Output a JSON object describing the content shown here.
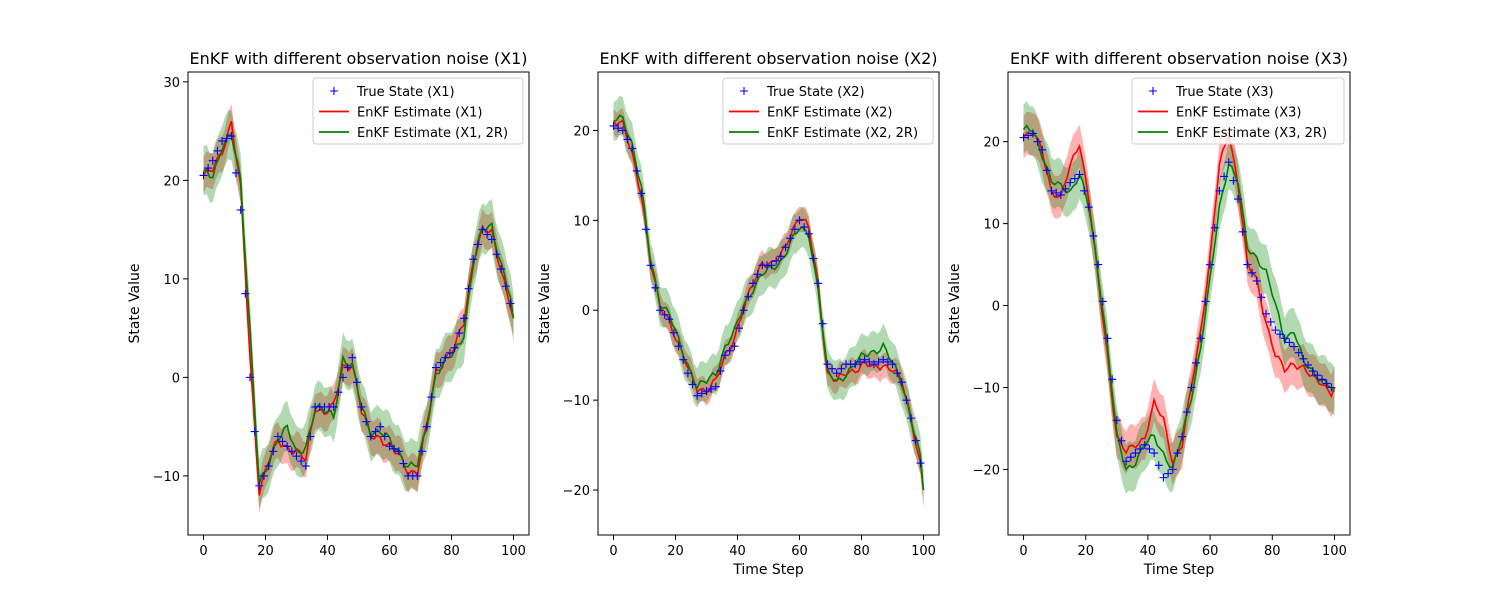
{
  "chart_data": [
    {
      "type": "line",
      "title": "EnKF with different observation noise (X1)",
      "xlabel": "",
      "ylabel": "State Value",
      "xlim": [
        -5,
        105
      ],
      "ylim": [
        -16,
        31
      ],
      "xticks": [
        0,
        20,
        40,
        60,
        80,
        100
      ],
      "yticks": [
        -10,
        0,
        10,
        20,
        30
      ],
      "legend_position": "upper-right",
      "x_knots": [
        0,
        3,
        6,
        9,
        12,
        15,
        18,
        21,
        24,
        27,
        30,
        33,
        36,
        39,
        42,
        45,
        48,
        51,
        54,
        57,
        60,
        63,
        66,
        69,
        72,
        75,
        78,
        81,
        84,
        87,
        90,
        93,
        96,
        99,
        100
      ],
      "series": [
        {
          "name": "True State (X1)",
          "marker": "+",
          "color": "#0000ff",
          "values": [
            20.5,
            22.0,
            24.0,
            24.5,
            17.0,
            0.0,
            -11.0,
            -9.0,
            -6.0,
            -7.0,
            -8.0,
            -9.0,
            -3.0,
            -3.0,
            -3.0,
            0.0,
            2.0,
            -3.0,
            -6.0,
            -5.0,
            -7.0,
            -7.5,
            -10.0,
            -10.0,
            -5.0,
            1.0,
            2.0,
            3.0,
            6.0,
            12.0,
            15.0,
            14.0,
            11.0,
            7.5,
            6.0
          ]
        },
        {
          "name": "EnKF Estimate (X1)",
          "color": "#ff0000",
          "band": 1.8,
          "values": [
            20.5,
            21.0,
            23.0,
            26.0,
            19.0,
            2.0,
            -11.5,
            -8.5,
            -6.5,
            -7.0,
            -7.5,
            -8.5,
            -3.0,
            -3.5,
            -3.0,
            1.0,
            1.5,
            -3.5,
            -6.0,
            -6.0,
            -7.0,
            -8.0,
            -9.5,
            -9.5,
            -5.0,
            0.5,
            2.0,
            3.0,
            5.5,
            12.0,
            15.0,
            14.5,
            11.0,
            7.5,
            6.0
          ]
        },
        {
          "name": "EnKF Estimate (X1, 2R)",
          "color": "#008000",
          "band": 2.5,
          "values": [
            21.0,
            20.5,
            23.5,
            24.5,
            20.0,
            5.0,
            -11.0,
            -9.0,
            -6.0,
            -5.0,
            -8.0,
            -7.0,
            -3.0,
            -3.5,
            -4.0,
            2.0,
            1.0,
            -3.0,
            -5.5,
            -5.5,
            -6.5,
            -7.5,
            -9.0,
            -9.0,
            -5.0,
            0.5,
            1.5,
            2.5,
            4.5,
            11.5,
            15.0,
            15.5,
            11.5,
            8.0,
            6.0
          ]
        }
      ]
    },
    {
      "type": "line",
      "title": "EnKF with different observation noise (X2)",
      "xlabel": "Time Step",
      "ylabel": "State Value",
      "xlim": [
        -5,
        105
      ],
      "ylim": [
        -25,
        26.5
      ],
      "xticks": [
        0,
        20,
        40,
        60,
        80,
        100
      ],
      "yticks": [
        -20,
        -10,
        0,
        10,
        20
      ],
      "legend_position": "upper-right",
      "x_knots": [
        0,
        3,
        6,
        9,
        12,
        15,
        18,
        21,
        24,
        27,
        30,
        33,
        36,
        39,
        42,
        45,
        48,
        51,
        54,
        57,
        60,
        63,
        66,
        69,
        72,
        75,
        78,
        81,
        84,
        87,
        90,
        93,
        96,
        99,
        100
      ],
      "series": [
        {
          "name": "True State (X2)",
          "marker": "+",
          "color": "#0000ff",
          "values": [
            20.5,
            20.0,
            18.0,
            13.0,
            5.0,
            0.0,
            -1.0,
            -4.0,
            -7.0,
            -9.5,
            -9.0,
            -8.5,
            -5.0,
            -4.0,
            0.0,
            3.0,
            5.0,
            5.0,
            6.0,
            8.0,
            10.0,
            8.5,
            3.0,
            -6.0,
            -7.0,
            -6.0,
            -6.0,
            -5.5,
            -6.0,
            -5.5,
            -6.0,
            -8.0,
            -12.0,
            -17.0,
            -21.5
          ]
        },
        {
          "name": "EnKF Estimate (X2)",
          "color": "#ff0000",
          "band": 1.4,
          "values": [
            21.0,
            20.5,
            17.5,
            13.0,
            5.0,
            0.5,
            -1.0,
            -4.0,
            -6.5,
            -8.5,
            -9.0,
            -8.0,
            -5.0,
            -3.0,
            0.0,
            3.0,
            5.5,
            5.0,
            6.0,
            8.5,
            10.5,
            9.0,
            3.0,
            -7.0,
            -8.0,
            -7.0,
            -6.5,
            -6.0,
            -6.5,
            -6.0,
            -6.5,
            -8.0,
            -12.0,
            -17.0,
            -20.0
          ]
        },
        {
          "name": "EnKF Estimate (X2, 2R)",
          "color": "#008000",
          "band": 2.2,
          "values": [
            21.0,
            21.5,
            18.5,
            13.5,
            5.5,
            1.0,
            -0.5,
            -3.5,
            -6.0,
            -8.5,
            -8.0,
            -7.0,
            -4.0,
            -2.5,
            0.5,
            2.5,
            4.0,
            4.5,
            5.5,
            7.5,
            9.0,
            8.5,
            2.5,
            -7.0,
            -8.0,
            -7.0,
            -6.0,
            -5.0,
            -4.5,
            -4.0,
            -6.0,
            -8.0,
            -12.0,
            -16.5,
            -20.0
          ]
        }
      ]
    },
    {
      "type": "line",
      "title": "EnKF with different observation noise (X3)",
      "xlabel": "Time Step",
      "ylabel": "State Value",
      "xlim": [
        -5,
        105
      ],
      "ylim": [
        -28,
        28.5
      ],
      "xticks": [
        0,
        20,
        40,
        60,
        80,
        100
      ],
      "yticks": [
        -20,
        -10,
        0,
        10,
        20
      ],
      "legend_position": "upper-right",
      "x_knots": [
        0,
        3,
        6,
        9,
        12,
        15,
        18,
        21,
        24,
        27,
        30,
        33,
        36,
        39,
        42,
        45,
        48,
        51,
        54,
        57,
        60,
        63,
        66,
        69,
        72,
        75,
        78,
        81,
        84,
        87,
        90,
        93,
        96,
        99,
        100
      ],
      "series": [
        {
          "name": "True State (X3)",
          "marker": "+",
          "color": "#0000ff",
          "values": [
            20.5,
            21.0,
            19.0,
            14.0,
            13.5,
            15.0,
            16.0,
            12.0,
            5.0,
            -4.0,
            -14.0,
            -19.0,
            -18.0,
            -17.0,
            -18.0,
            -21.0,
            -20.0,
            -16.0,
            -10.0,
            -4.0,
            5.0,
            14.0,
            17.5,
            13.0,
            5.0,
            3.0,
            -1.0,
            -3.0,
            -4.0,
            -5.0,
            -6.5,
            -8.0,
            -9.0,
            -10.0,
            -8.0
          ]
        },
        {
          "name": "EnKF Estimate (X3)",
          "color": "#ff0000",
          "band": 2.6,
          "values": [
            20.5,
            21.0,
            19.0,
            14.0,
            13.0,
            17.0,
            20.0,
            13.0,
            3.0,
            -6.0,
            -16.0,
            -18.0,
            -17.0,
            -16.0,
            -12.0,
            -14.0,
            -19.0,
            -17.0,
            -10.0,
            -3.0,
            6.0,
            17.0,
            21.0,
            15.0,
            5.0,
            3.0,
            -2.0,
            -6.0,
            -8.0,
            -7.0,
            -7.5,
            -9.0,
            -9.5,
            -10.5,
            -10.0
          ]
        },
        {
          "name": "EnKF Estimate (X3, 2R)",
          "color": "#008000",
          "band": 3.0,
          "values": [
            21.5,
            21.5,
            18.5,
            15.0,
            14.5,
            14.0,
            16.0,
            12.0,
            4.0,
            -5.0,
            -16.0,
            -20.0,
            -19.0,
            -17.0,
            -16.0,
            -18.0,
            -20.0,
            -16.0,
            -11.0,
            -5.0,
            3.0,
            12.0,
            17.5,
            15.0,
            7.0,
            6.0,
            4.0,
            0.0,
            -4.0,
            -3.0,
            -7.0,
            -8.0,
            -9.0,
            -10.0,
            -10.5
          ]
        }
      ]
    }
  ]
}
